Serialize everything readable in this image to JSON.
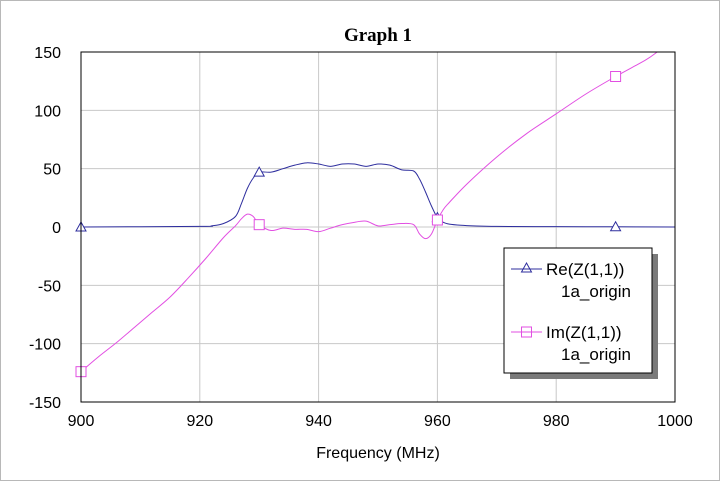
{
  "chart_data": {
    "type": "line",
    "title": "Graph 1",
    "xlabel": "Frequency (MHz)",
    "ylabel": "",
    "xlim": [
      900,
      1000
    ],
    "ylim": [
      -150,
      150
    ],
    "xticks": [
      900,
      920,
      940,
      960,
      980,
      1000
    ],
    "yticks": [
      -150,
      -100,
      -50,
      0,
      50,
      100,
      150
    ],
    "grid": true,
    "legend_position": "right",
    "series": [
      {
        "name": "Re(Z(1,1))",
        "subname": "1a_origin",
        "color": "#2e2e9e",
        "marker": "triangle",
        "markers_x": [
          900,
          930,
          960,
          990
        ],
        "x": [
          900,
          920,
          922,
          924,
          926,
          927,
          928,
          929,
          930,
          932,
          934,
          936,
          938,
          940,
          942,
          944,
          946,
          948,
          950,
          952,
          954,
          956,
          957,
          958,
          959,
          960,
          961,
          962,
          964,
          966,
          970,
          980,
          990,
          1000
        ],
        "y": [
          0,
          0.5,
          1,
          3,
          9,
          20,
          33,
          42,
          47,
          47,
          50,
          53,
          55,
          54,
          52,
          54,
          54,
          52,
          54,
          53,
          49,
          48,
          41,
          30,
          18,
          8,
          4,
          2.5,
          1.5,
          1,
          0.5,
          0.3,
          0.2,
          0
        ]
      },
      {
        "name": "Im(Z(1,1))",
        "subname": "1a_origin",
        "color": "#e24fe2",
        "marker": "square",
        "markers_x": [
          900,
          930,
          960,
          990
        ],
        "x": [
          900,
          903,
          906,
          909,
          912,
          915,
          918,
          921,
          924,
          926,
          927,
          928,
          929,
          930,
          932,
          934,
          936,
          938,
          940,
          942,
          944,
          946,
          948,
          950,
          952,
          954,
          956,
          957,
          958,
          959,
          960,
          961,
          962,
          965,
          970,
          975,
          980,
          985,
          990,
          995,
          997
        ],
        "y": [
          -124,
          -111,
          -99,
          -86,
          -73,
          -60,
          -44,
          -27,
          -9,
          1,
          7,
          11,
          9,
          2,
          -3,
          -1,
          -2,
          -2,
          -4,
          -1,
          2,
          4,
          5,
          1,
          2,
          3,
          2,
          -6,
          -10,
          -6,
          6,
          15,
          21,
          37,
          60,
          80,
          97,
          114,
          129,
          143,
          150
        ]
      }
    ]
  }
}
